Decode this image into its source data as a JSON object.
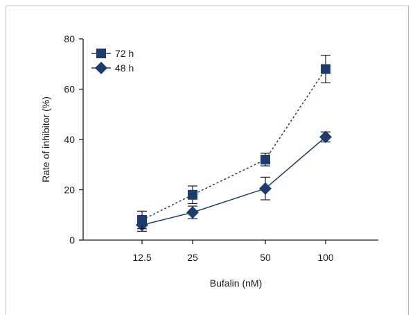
{
  "chart_data": {
    "type": "line",
    "categories": [
      "12.5",
      "25",
      "50",
      "100"
    ],
    "xlabel": "Bufalin (nM)",
    "ylabel": "Rate of inhibitor (%)",
    "ylim": [
      0,
      80
    ],
    "yticks": [
      "0",
      "20",
      "40",
      "60",
      "80"
    ],
    "grid": false,
    "legend": "top-left",
    "series": [
      {
        "name": "72 h",
        "marker": "square",
        "line_style": "dashed",
        "color": "#1f3b6e",
        "values": [
          8,
          18,
          32,
          68
        ],
        "error": [
          3.5,
          3.5,
          2.5,
          5.5
        ]
      },
      {
        "name": "48 h",
        "marker": "diamond",
        "line_style": "solid",
        "color": "#1f3b6e",
        "values": [
          6,
          11,
          20.5,
          41
        ],
        "error": [
          2.5,
          2.5,
          4.5,
          2
        ]
      }
    ]
  }
}
